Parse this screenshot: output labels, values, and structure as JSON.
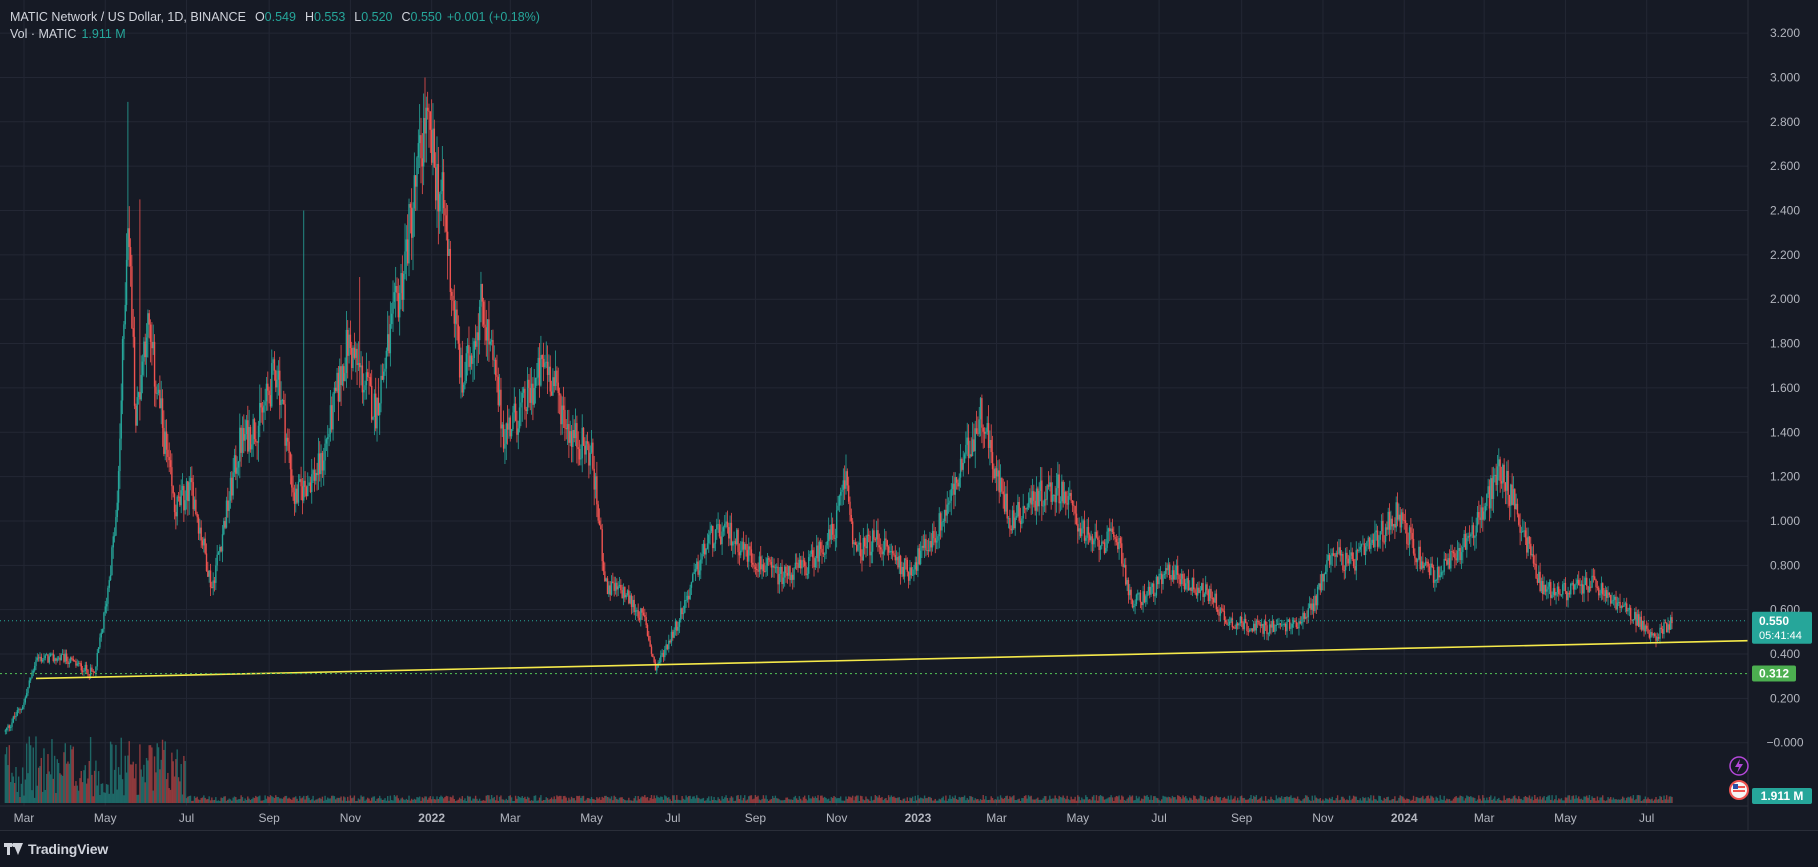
{
  "legend": {
    "symbol": "MATIC Network / US Dollar, 1D, BINANCE",
    "o_label": "O",
    "o_value": "0.549",
    "h_label": "H",
    "h_value": "0.553",
    "l_label": "L",
    "l_value": "0.520",
    "c_label": "C",
    "c_value": "0.550",
    "change": "+0.001 (+0.18%)",
    "vol_label": "Vol · MATIC",
    "vol_value": "1.911 M"
  },
  "brand": {
    "name": "TradingView"
  },
  "colors": {
    "up": "#26a69a",
    "down": "#ef5350",
    "background": "#161a25",
    "trendline": "#f5e94a",
    "price_badge": "#26a69a",
    "level_badge": "#4caf50",
    "grid": "#232734",
    "axis_text": "#b2b5be"
  },
  "icons": [
    "lightning-icon",
    "flag-icon"
  ],
  "chart_data": {
    "type": "candlestick",
    "title": "MATIC Network / US Dollar, 1D, BINANCE",
    "series_name": "MATIC/USD",
    "ylim": [
      -0.15,
      3.25
    ],
    "y_ticks": [
      "3.200",
      "3.000",
      "2.800",
      "2.600",
      "2.400",
      "2.200",
      "2.000",
      "1.800",
      "1.600",
      "1.400",
      "1.200",
      "1.000",
      "0.800",
      "0.600",
      "0.400",
      "0.200",
      "−0.000"
    ],
    "x_ticks": [
      "Mar",
      "May",
      "Jul",
      "Sep",
      "Nov",
      "2022",
      "Mar",
      "May",
      "Jul",
      "Sep",
      "Nov",
      "2023",
      "Mar",
      "May",
      "Jul",
      "Sep",
      "Nov",
      "2024",
      "Mar",
      "May",
      "Jul"
    ],
    "x_range": [
      "2021-02-17",
      "2024-07-20"
    ],
    "grid": true,
    "price_path": [
      {
        "date": "2021-02-15",
        "close": 0.05
      },
      {
        "date": "2021-03-01",
        "close": 0.18
      },
      {
        "date": "2021-03-10",
        "close": 0.38
      },
      {
        "date": "2021-04-01",
        "close": 0.38
      },
      {
        "date": "2021-04-23",
        "close": 0.31
      },
      {
        "date": "2021-05-01",
        "close": 0.6
      },
      {
        "date": "2021-05-10",
        "close": 1.05
      },
      {
        "date": "2021-05-18",
        "close": 2.4
      },
      {
        "date": "2021-05-24",
        "close": 1.45
      },
      {
        "date": "2021-06-01",
        "close": 1.9
      },
      {
        "date": "2021-06-10",
        "close": 1.55
      },
      {
        "date": "2021-06-22",
        "close": 1.05
      },
      {
        "date": "2021-07-05",
        "close": 1.15
      },
      {
        "date": "2021-07-20",
        "close": 0.7
      },
      {
        "date": "2021-08-10",
        "close": 1.35
      },
      {
        "date": "2021-08-25",
        "close": 1.45
      },
      {
        "date": "2021-09-07",
        "close": 1.7
      },
      {
        "date": "2021-09-20",
        "close": 1.1
      },
      {
        "date": "2021-10-10",
        "close": 1.25
      },
      {
        "date": "2021-10-30",
        "close": 1.8
      },
      {
        "date": "2021-11-20",
        "close": 1.5
      },
      {
        "date": "2021-12-10",
        "close": 2.1
      },
      {
        "date": "2021-12-27",
        "close": 2.8
      },
      {
        "date": "2022-01-10",
        "close": 2.4
      },
      {
        "date": "2022-01-24",
        "close": 1.6
      },
      {
        "date": "2022-02-08",
        "close": 2.0
      },
      {
        "date": "2022-02-24",
        "close": 1.4
      },
      {
        "date": "2022-03-10",
        "close": 1.5
      },
      {
        "date": "2022-03-28",
        "close": 1.72
      },
      {
        "date": "2022-04-15",
        "close": 1.4
      },
      {
        "date": "2022-05-01",
        "close": 1.3
      },
      {
        "date": "2022-05-12",
        "close": 0.7
      },
      {
        "date": "2022-05-25",
        "close": 0.68
      },
      {
        "date": "2022-06-10",
        "close": 0.55
      },
      {
        "date": "2022-06-18",
        "close": 0.33
      },
      {
        "date": "2022-07-05",
        "close": 0.55
      },
      {
        "date": "2022-07-28",
        "close": 0.92
      },
      {
        "date": "2022-08-12",
        "close": 0.95
      },
      {
        "date": "2022-09-01",
        "close": 0.82
      },
      {
        "date": "2022-09-20",
        "close": 0.75
      },
      {
        "date": "2022-10-10",
        "close": 0.8
      },
      {
        "date": "2022-10-30",
        "close": 0.95
      },
      {
        "date": "2022-11-08",
        "close": 1.2
      },
      {
        "date": "2022-11-15",
        "close": 0.85
      },
      {
        "date": "2022-12-01",
        "close": 0.92
      },
      {
        "date": "2022-12-25",
        "close": 0.77
      },
      {
        "date": "2023-01-15",
        "close": 0.95
      },
      {
        "date": "2023-02-01",
        "close": 1.2
      },
      {
        "date": "2023-02-18",
        "close": 1.5
      },
      {
        "date": "2023-03-01",
        "close": 1.2
      },
      {
        "date": "2023-03-12",
        "close": 1.0
      },
      {
        "date": "2023-04-01",
        "close": 1.12
      },
      {
        "date": "2023-04-18",
        "close": 1.15
      },
      {
        "date": "2023-05-10",
        "close": 0.9
      },
      {
        "date": "2023-06-01",
        "close": 0.92
      },
      {
        "date": "2023-06-10",
        "close": 0.62
      },
      {
        "date": "2023-06-28",
        "close": 0.7
      },
      {
        "date": "2023-07-10",
        "close": 0.78
      },
      {
        "date": "2023-07-22",
        "close": 0.72
      },
      {
        "date": "2023-08-10",
        "close": 0.66
      },
      {
        "date": "2023-08-20",
        "close": 0.55
      },
      {
        "date": "2023-09-15",
        "close": 0.52
      },
      {
        "date": "2023-10-10",
        "close": 0.53
      },
      {
        "date": "2023-10-25",
        "close": 0.62
      },
      {
        "date": "2023-11-08",
        "close": 0.88
      },
      {
        "date": "2023-11-20",
        "close": 0.8
      },
      {
        "date": "2023-12-10",
        "close": 0.9
      },
      {
        "date": "2023-12-27",
        "close": 1.05
      },
      {
        "date": "2024-01-10",
        "close": 0.85
      },
      {
        "date": "2024-01-25",
        "close": 0.75
      },
      {
        "date": "2024-02-10",
        "close": 0.85
      },
      {
        "date": "2024-03-01",
        "close": 1.05
      },
      {
        "date": "2024-03-13",
        "close": 1.25
      },
      {
        "date": "2024-03-28",
        "close": 1.0
      },
      {
        "date": "2024-04-13",
        "close": 0.7
      },
      {
        "date": "2024-05-01",
        "close": 0.68
      },
      {
        "date": "2024-05-20",
        "close": 0.72
      },
      {
        "date": "2024-06-10",
        "close": 0.62
      },
      {
        "date": "2024-06-25",
        "close": 0.55
      },
      {
        "date": "2024-07-05",
        "close": 0.47
      },
      {
        "date": "2024-07-20",
        "close": 0.55
      }
    ],
    "spikes": [
      {
        "date": "2021-05-18",
        "high": 2.89
      },
      {
        "date": "2021-05-27",
        "high": 2.45
      },
      {
        "date": "2021-09-27",
        "high": 2.4
      },
      {
        "date": "2021-11-08",
        "high": 2.1
      },
      {
        "date": "2021-12-27",
        "high": 3.0
      },
      {
        "date": "2022-02-08",
        "high": 2.07
      },
      {
        "date": "2022-11-08",
        "high": 1.3
      },
      {
        "date": "2023-02-18",
        "high": 1.57
      },
      {
        "date": "2024-03-13",
        "high": 1.29
      }
    ],
    "trendline": {
      "start": {
        "date": "2021-03-10",
        "price": 0.29
      },
      "end": {
        "date": "2024-07-20",
        "price": 0.46
      }
    },
    "horizontal_level": {
      "price": 0.312,
      "label": "0.312"
    },
    "last_price": {
      "price": 0.55,
      "label": "0.550",
      "countdown": "05:41:44"
    },
    "volume_label": "1.911 M"
  }
}
